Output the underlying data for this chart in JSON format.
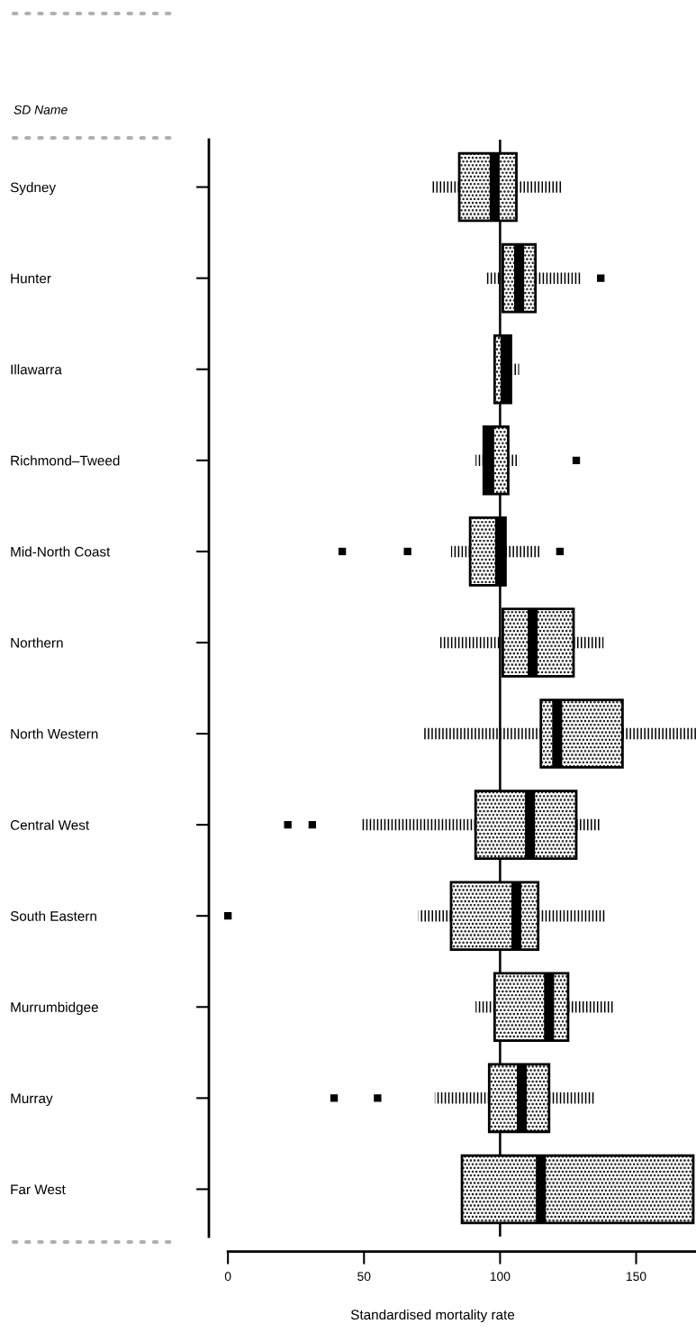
{
  "chart_data": {
    "type": "box",
    "orientation": "horizontal",
    "ylabel": "SD Name",
    "xlabel": "Standardised mortality rate",
    "categories": [
      "Sydney",
      "Hunter",
      "Illawarra",
      "Richmond–Tweed",
      "Mid-North Coast",
      "Northern",
      "North Western",
      "Central West",
      "South Eastern",
      "Murrumbidgee",
      "Murray",
      "Far West"
    ],
    "boxes": [
      {
        "low": 75,
        "q1": 85,
        "median": 98,
        "q3": 106,
        "high": 123
      },
      {
        "low": 95,
        "q1": 101,
        "median": 107,
        "q3": 113,
        "high": 130,
        "outliers": [
          137
        ]
      },
      {
        "low": 98,
        "q1": 98,
        "median": 102,
        "q3": 104,
        "high": 107
      },
      {
        "low": 91,
        "q1": 94,
        "median": 96,
        "q3": 103,
        "high": 107,
        "outliers": [
          128
        ]
      },
      {
        "low": 82,
        "q1": 89,
        "median": 100,
        "q3": 102,
        "high": 115,
        "outliers": [
          42,
          66,
          122
        ]
      },
      {
        "low": 78,
        "q1": 101,
        "median": 112,
        "q3": 127,
        "high": 138
      },
      {
        "low": 72,
        "q1": 115,
        "median": 121,
        "q3": 145,
        "high": 172
      },
      {
        "low": 49,
        "q1": 91,
        "median": 111,
        "q3": 128,
        "high": 137,
        "outliers": [
          22,
          31
        ]
      },
      {
        "low": 70,
        "q1": 82,
        "median": 106,
        "q3": 114,
        "high": 139,
        "outliers": [
          0
        ]
      },
      {
        "low": 91,
        "q1": 98,
        "median": 118,
        "q3": 125,
        "high": 142
      },
      {
        "low": 76,
        "q1": 96,
        "median": 108,
        "q3": 118,
        "high": 135,
        "outliers": [
          39,
          55
        ]
      },
      {
        "low": 86,
        "q1": 86,
        "median": 115,
        "q3": 171,
        "high": 171
      }
    ],
    "xlim": [
      -7,
      172
    ],
    "xticks": [
      0,
      50,
      100,
      150
    ],
    "ref_lines": [
      {
        "axis": "x",
        "value": 100,
        "label": null,
        "color": "#000000"
      }
    ],
    "marker": "square",
    "grid": false,
    "legend": false
  }
}
